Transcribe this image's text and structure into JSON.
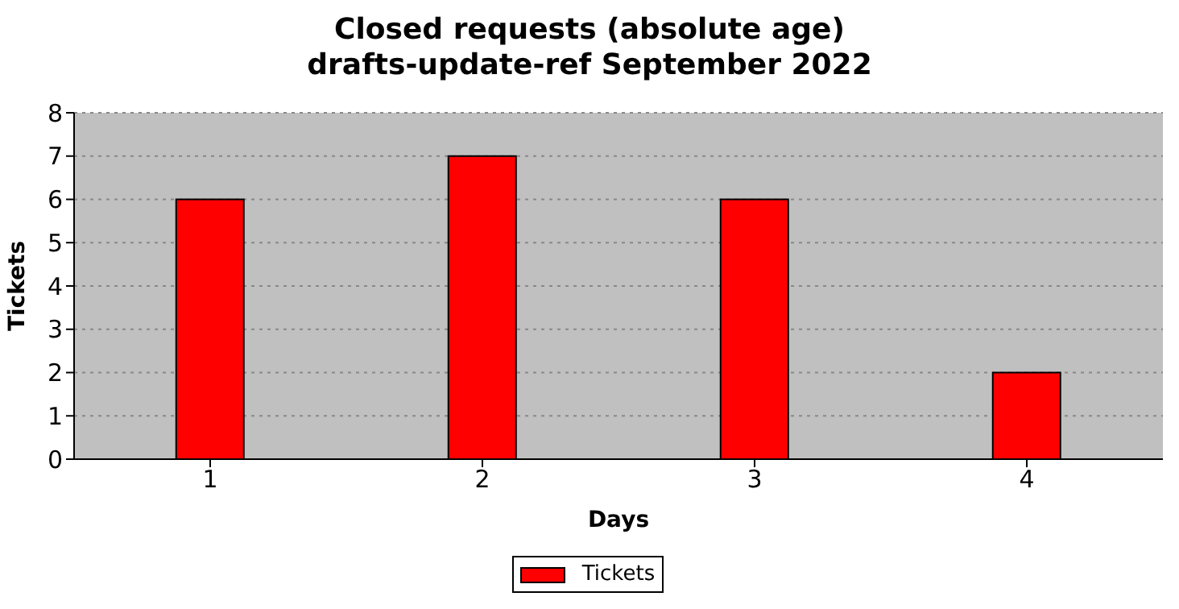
{
  "chart_data": {
    "type": "bar",
    "title": "Closed requests (absolute age)\ndrafts-update-ref September 2022",
    "xlabel": "Days",
    "ylabel": "Tickets",
    "categories": [
      "1",
      "2",
      "3",
      "4"
    ],
    "series": [
      {
        "name": "Tickets",
        "color": "#ff0000",
        "values": [
          6,
          7,
          6,
          2
        ]
      }
    ],
    "ylim": [
      0,
      8
    ],
    "yticks": [
      0,
      1,
      2,
      3,
      4,
      5,
      6,
      7,
      8
    ],
    "grid": "y",
    "legend": "bottom"
  }
}
